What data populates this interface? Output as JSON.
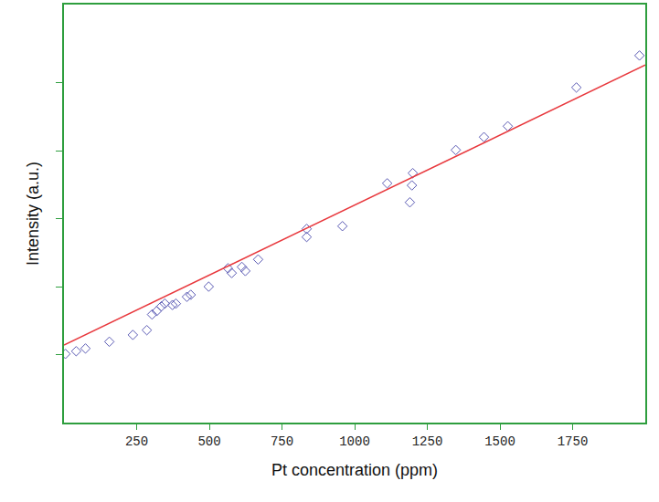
{
  "chart_data": {
    "type": "scatter",
    "x_label": "Pt concentration (ppm)",
    "y_label": "Intensity (a.u.)",
    "xlim": [
      0,
      2000
    ],
    "xticks": [
      250,
      500,
      750,
      1000,
      1250,
      1500,
      1750
    ],
    "ylim": [
      0,
      6.15
    ],
    "yticks": [
      1,
      2,
      3,
      4,
      5
    ],
    "tick_labels": "x",
    "grid": false,
    "series": [
      {
        "type": "scatter",
        "marker": "diamond-open",
        "color": "#5a5ab4",
        "x": [
          5,
          42,
          74,
          156,
          237,
          285,
          303,
          319,
          335,
          347,
          373,
          385,
          423,
          436,
          498,
          564,
          577,
          612,
          624,
          668,
          835,
          835,
          958,
          1112,
          1190,
          1197,
          1200,
          1348,
          1445,
          1527,
          1763,
          1980
        ],
        "values": [
          1.01,
          1.05,
          1.09,
          1.19,
          1.29,
          1.36,
          1.59,
          1.64,
          1.71,
          1.75,
          1.73,
          1.75,
          1.85,
          1.88,
          2.0,
          2.27,
          2.2,
          2.29,
          2.23,
          2.4,
          2.85,
          2.73,
          2.89,
          3.52,
          3.24,
          3.49,
          3.67,
          4.01,
          4.2,
          4.36,
          4.93,
          5.4
        ]
      },
      {
        "type": "line",
        "line_style": "solid",
        "color": "#e8383d",
        "x": [
          0,
          2000
        ],
        "values": [
          1.14,
          5.26
        ]
      }
    ]
  }
}
